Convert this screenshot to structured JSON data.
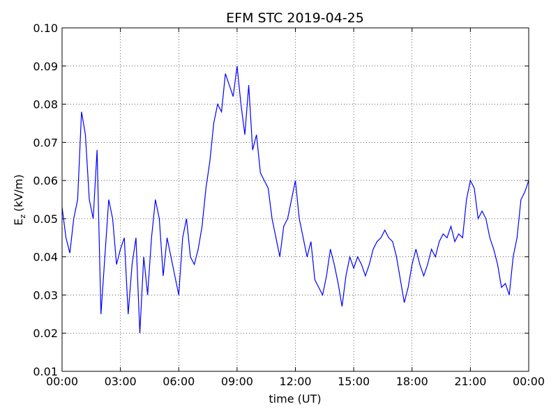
{
  "chart_data": {
    "type": "line",
    "title": "EFM STC    2019-04-25",
    "xlabel": "time (UT)",
    "ylabel": {
      "base": "E",
      "sub": "z",
      "unit": "(kV/m)"
    },
    "x": [
      0,
      0.2,
      0.4,
      0.6,
      0.8,
      1,
      1.2,
      1.4,
      1.6,
      1.8,
      2,
      2.2,
      2.4,
      2.6,
      2.8,
      3,
      3.2,
      3.4,
      3.6,
      3.8,
      4,
      4.2,
      4.4,
      4.6,
      4.8,
      5,
      5.2,
      5.4,
      5.6,
      5.8,
      6,
      6.2,
      6.4,
      6.6,
      6.8,
      7,
      7.2,
      7.4,
      7.6,
      7.8,
      8,
      8.2,
      8.4,
      8.6,
      8.8,
      9,
      9.2,
      9.4,
      9.6,
      9.8,
      10,
      10.2,
      10.4,
      10.6,
      10.8,
      11,
      11.2,
      11.4,
      11.6,
      11.8,
      12,
      12.2,
      12.4,
      12.6,
      12.8,
      13,
      13.2,
      13.4,
      13.6,
      13.8,
      14,
      14.2,
      14.4,
      14.6,
      14.8,
      15,
      15.2,
      15.4,
      15.6,
      15.8,
      16,
      16.2,
      16.4,
      16.6,
      16.8,
      17,
      17.2,
      17.4,
      17.6,
      17.8,
      18,
      18.2,
      18.4,
      18.6,
      18.8,
      19,
      19.2,
      19.4,
      19.6,
      19.8,
      20,
      20.2,
      20.4,
      20.6,
      20.8,
      21,
      21.2,
      21.4,
      21.6,
      21.8,
      22,
      22.2,
      22.4,
      22.6,
      22.8,
      23,
      23.2,
      23.4,
      23.6,
      23.8,
      24
    ],
    "series": [
      {
        "color": "#0000ff",
        "values": [
          0.053,
          0.045,
          0.041,
          0.05,
          0.055,
          0.078,
          0.072,
          0.055,
          0.05,
          0.068,
          0.025,
          0.04,
          0.055,
          0.05,
          0.038,
          0.042,
          0.045,
          0.025,
          0.038,
          0.045,
          0.02,
          0.04,
          0.03,
          0.045,
          0.055,
          0.05,
          0.035,
          0.045,
          0.04,
          0.035,
          0.03,
          0.045,
          0.05,
          0.04,
          0.038,
          0.042,
          0.048,
          0.058,
          0.065,
          0.075,
          0.08,
          0.078,
          0.088,
          0.085,
          0.082,
          0.09,
          0.08,
          0.072,
          0.085,
          0.068,
          0.072,
          0.062,
          0.06,
          0.058,
          0.05,
          0.045,
          0.04,
          0.048,
          0.05,
          0.055,
          0.06,
          0.05,
          0.045,
          0.04,
          0.044,
          0.034,
          0.032,
          0.03,
          0.035,
          0.042,
          0.038,
          0.033,
          0.027,
          0.035,
          0.04,
          0.037,
          0.04,
          0.038,
          0.035,
          0.038,
          0.042,
          0.044,
          0.045,
          0.047,
          0.045,
          0.044,
          0.04,
          0.034,
          0.028,
          0.032,
          0.038,
          0.042,
          0.038,
          0.035,
          0.038,
          0.042,
          0.04,
          0.044,
          0.046,
          0.045,
          0.048,
          0.044,
          0.046,
          0.045,
          0.055,
          0.06,
          0.058,
          0.05,
          0.052,
          0.05,
          0.045,
          0.042,
          0.038,
          0.032,
          0.033,
          0.03,
          0.04,
          0.045,
          0.055,
          0.057,
          0.06
        ]
      }
    ],
    "xlim": [
      0,
      24
    ],
    "xticks": [
      {
        "value": 0,
        "label": "00:00"
      },
      {
        "value": 3,
        "label": "03:00"
      },
      {
        "value": 6,
        "label": "06:00"
      },
      {
        "value": 9,
        "label": "09:00"
      },
      {
        "value": 12,
        "label": "12:00"
      },
      {
        "value": 15,
        "label": "15:00"
      },
      {
        "value": 18,
        "label": "18:00"
      },
      {
        "value": 21,
        "label": "21:00"
      },
      {
        "value": 24,
        "label": "00:00"
      }
    ],
    "ylim": [
      0.01,
      0.1
    ],
    "yticks": [
      0.01,
      0.02,
      0.03,
      0.04,
      0.05,
      0.06,
      0.07,
      0.08,
      0.09,
      {
        "value": 0.1,
        "label": "0.10"
      }
    ],
    "grid": true
  }
}
